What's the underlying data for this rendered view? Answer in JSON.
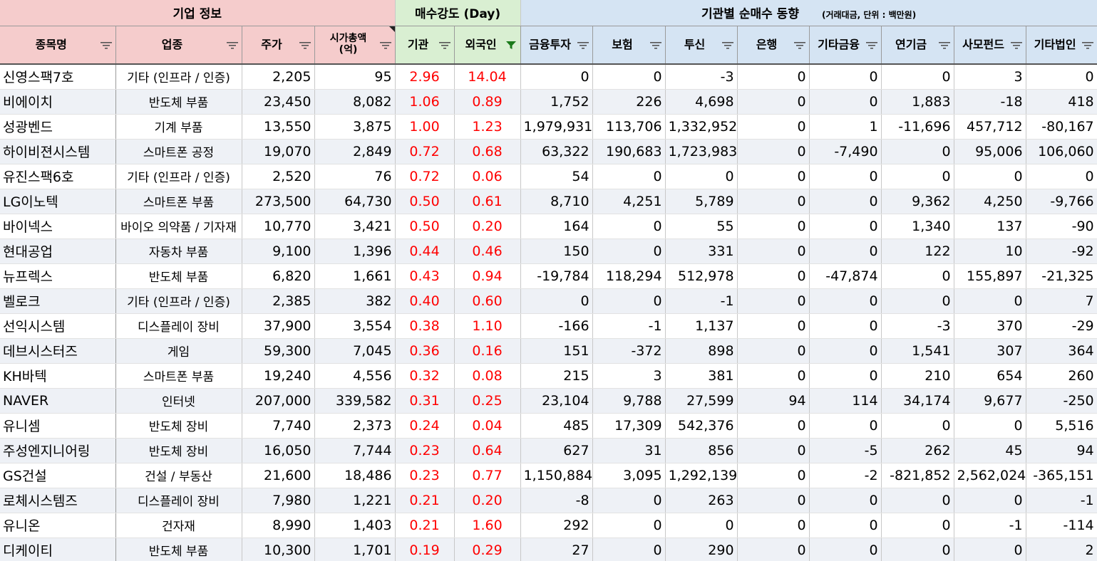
{
  "groups": {
    "company": "기업 정보",
    "strength": "매수강도 (Day)",
    "institution": "기관별 순매수 동향",
    "institution_note": "(거래대금, 단위 : 백만원)"
  },
  "headers": {
    "name": "종목명",
    "industry": "업종",
    "price": "주가",
    "mcap_line1": "시가총액",
    "mcap_line2": "(억)",
    "inst": "기관",
    "foreign": "외국인",
    "fin": "금융투자",
    "ins": "보험",
    "trust": "투신",
    "bank": "은행",
    "otherfin": "기타금융",
    "pension": "연기금",
    "pef": "사모펀드",
    "othercorp": "기타법인"
  },
  "colors": {
    "filter_active": "#1a7a1a",
    "strength_text": "#ff0000"
  },
  "rows": [
    [
      "신영스팩7호",
      "기타 (인프라 / 인증)",
      "2,205",
      "95",
      "2.96",
      "14.04",
      "0",
      "0",
      "-3",
      "0",
      "0",
      "0",
      "3",
      "0"
    ],
    [
      "비에이치",
      "반도체 부품",
      "23,450",
      "8,082",
      "1.06",
      "0.89",
      "1,752",
      "226",
      "4,698",
      "0",
      "0",
      "1,883",
      "-18",
      "418"
    ],
    [
      "성광벤드",
      "기계 부품",
      "13,550",
      "3,875",
      "1.00",
      "1.23",
      "1,979,931",
      "113,706",
      "1,332,952",
      "0",
      "1",
      "-11,696",
      "457,712",
      "-80,167"
    ],
    [
      "하이비젼시스템",
      "스마트폰 공정",
      "19,070",
      "2,849",
      "0.72",
      "0.68",
      "63,322",
      "190,683",
      "1,723,983",
      "0",
      "-7,490",
      "0",
      "95,006",
      "106,060"
    ],
    [
      "유진스팩6호",
      "기타 (인프라 / 인증)",
      "2,520",
      "76",
      "0.72",
      "0.06",
      "54",
      "0",
      "0",
      "0",
      "0",
      "0",
      "0",
      "0"
    ],
    [
      "LG이노텍",
      "스마트폰 부품",
      "273,500",
      "64,730",
      "0.50",
      "0.61",
      "8,710",
      "4,251",
      "5,789",
      "0",
      "0",
      "9,362",
      "4,250",
      "-9,766"
    ],
    [
      "바이넥스",
      "바이오 의약품 / 기자재",
      "10,770",
      "3,421",
      "0.50",
      "0.20",
      "164",
      "0",
      "55",
      "0",
      "0",
      "1,340",
      "137",
      "-90"
    ],
    [
      "현대공업",
      "자동차 부품",
      "9,100",
      "1,396",
      "0.44",
      "0.46",
      "150",
      "0",
      "331",
      "0",
      "0",
      "122",
      "10",
      "-92"
    ],
    [
      "뉴프렉스",
      "반도체 부품",
      "6,820",
      "1,661",
      "0.43",
      "0.94",
      "-19,784",
      "118,294",
      "512,978",
      "0",
      "-47,874",
      "0",
      "155,897",
      "-21,325"
    ],
    [
      "벨로크",
      "기타 (인프라 / 인증)",
      "2,385",
      "382",
      "0.40",
      "0.60",
      "0",
      "0",
      "-1",
      "0",
      "0",
      "0",
      "0",
      "7"
    ],
    [
      "선익시스템",
      "디스플레이 장비",
      "37,900",
      "3,554",
      "0.38",
      "1.10",
      "-166",
      "-1",
      "1,137",
      "0",
      "0",
      "-3",
      "370",
      "-29"
    ],
    [
      "데브시스터즈",
      "게임",
      "59,300",
      "7,045",
      "0.36",
      "0.16",
      "151",
      "-372",
      "898",
      "0",
      "0",
      "1,541",
      "307",
      "364"
    ],
    [
      "KH바텍",
      "스마트폰 부품",
      "19,240",
      "4,556",
      "0.32",
      "0.08",
      "215",
      "3",
      "381",
      "0",
      "0",
      "210",
      "654",
      "260"
    ],
    [
      "NAVER",
      "인터넷",
      "207,000",
      "339,582",
      "0.31",
      "0.25",
      "23,104",
      "9,788",
      "27,599",
      "94",
      "114",
      "34,174",
      "9,677",
      "-250"
    ],
    [
      "유니셈",
      "반도체 장비",
      "7,740",
      "2,373",
      "0.24",
      "0.04",
      "485",
      "17,309",
      "542,376",
      "0",
      "0",
      "0",
      "0",
      "5,516"
    ],
    [
      "주성엔지니어링",
      "반도체 장비",
      "16,050",
      "7,744",
      "0.23",
      "0.64",
      "627",
      "31",
      "856",
      "0",
      "-5",
      "262",
      "45",
      "94"
    ],
    [
      "GS건설",
      "건설 / 부동산",
      "21,600",
      "18,486",
      "0.23",
      "0.77",
      "1,150,884",
      "3,095",
      "1,292,139",
      "0",
      "-2",
      "-821,852",
      "2,562,024",
      "-365,151"
    ],
    [
      "로체시스템즈",
      "디스플레이 장비",
      "7,980",
      "1,221",
      "0.21",
      "0.20",
      "-8",
      "0",
      "263",
      "0",
      "0",
      "0",
      "0",
      "-1"
    ],
    [
      "유니온",
      "건자재",
      "8,990",
      "1,403",
      "0.21",
      "1.60",
      "292",
      "0",
      "0",
      "0",
      "0",
      "0",
      "-1",
      "-114"
    ],
    [
      "디케이티",
      "반도체 부품",
      "10,300",
      "1,701",
      "0.19",
      "0.29",
      "27",
      "0",
      "290",
      "0",
      "0",
      "0",
      "0",
      "2"
    ]
  ]
}
